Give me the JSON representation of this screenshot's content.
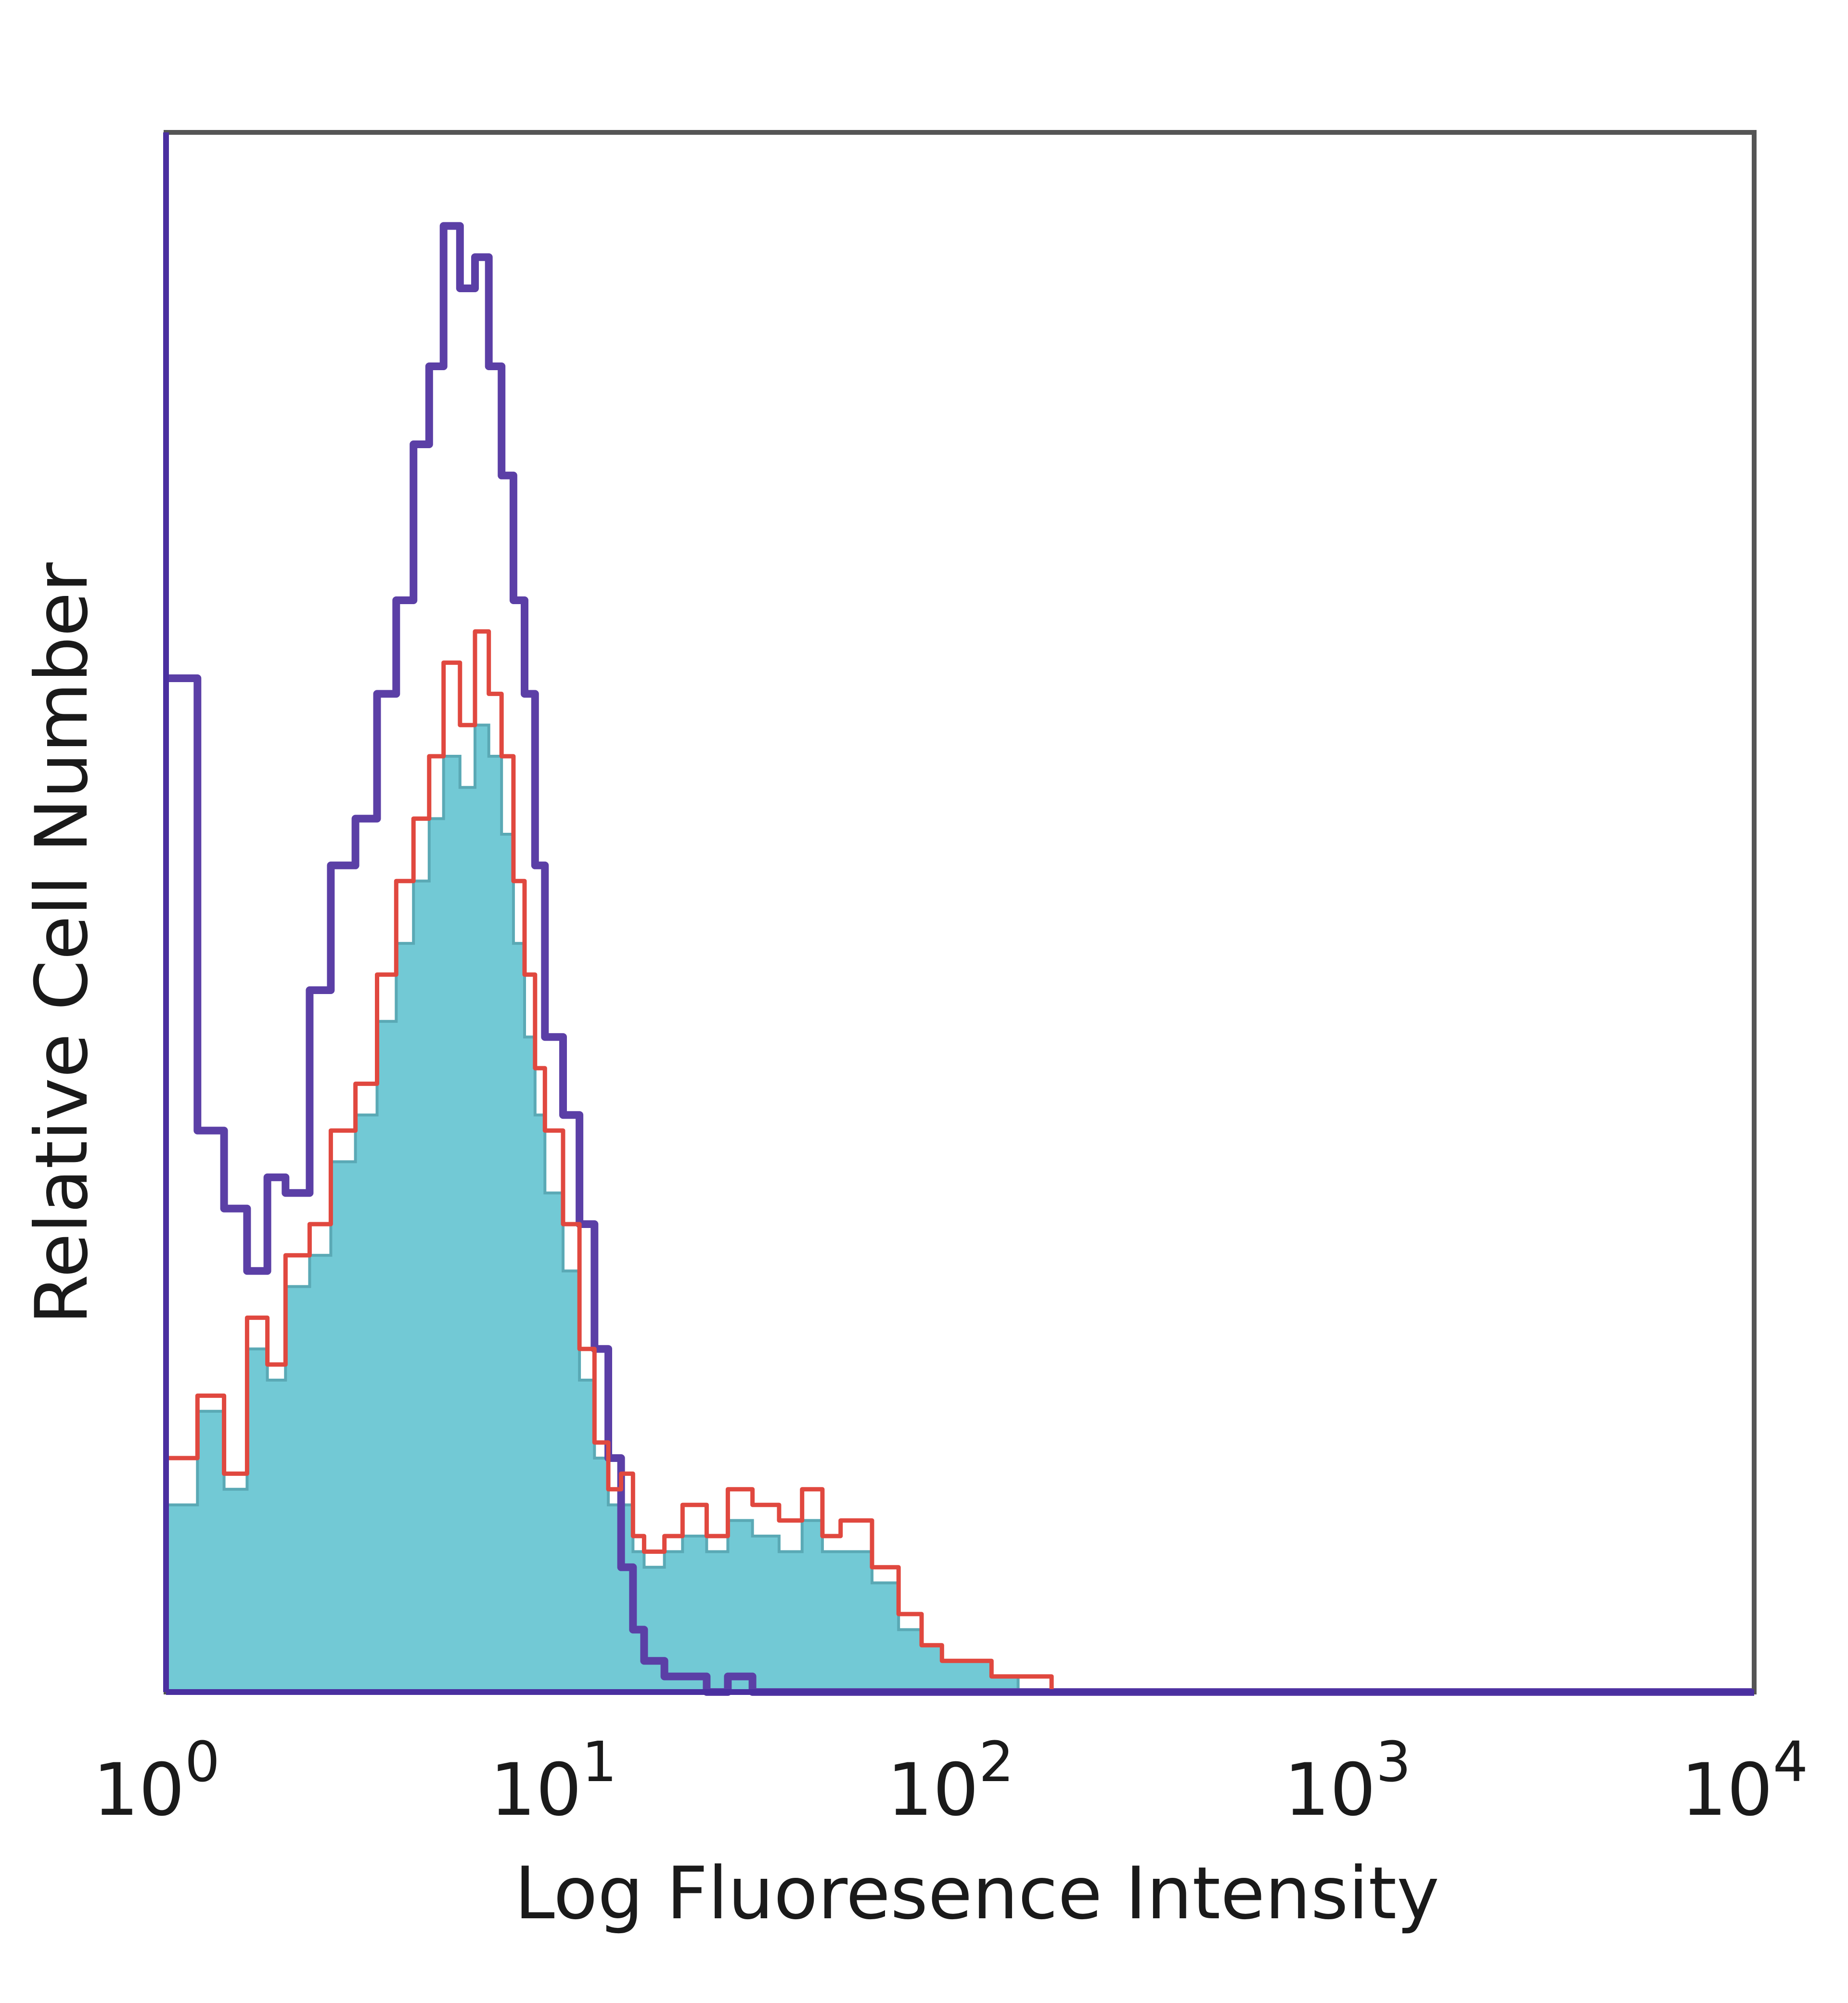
{
  "chart_data": {
    "type": "area",
    "title": "",
    "xlabel": "Log Fluoresence Intensity",
    "ylabel": "Relative Cell Number",
    "xscale": "log",
    "xlim": [
      1,
      10000
    ],
    "ylim": [
      0,
      100
    ],
    "grid": false,
    "legend": "none",
    "x_ticks": [
      {
        "base": "10",
        "exp": "0",
        "value": 1
      },
      {
        "base": "10",
        "exp": "1",
        "value": 10
      },
      {
        "base": "10",
        "exp": "2",
        "value": 100
      },
      {
        "base": "10",
        "exp": "3",
        "value": 1000
      },
      {
        "base": "10",
        "exp": "4",
        "value": 10000
      }
    ],
    "x": [
      1.0,
      1.2,
      1.4,
      1.6,
      1.8,
      2.0,
      2.3,
      2.6,
      3.0,
      3.4,
      3.8,
      4.2,
      4.6,
      5.0,
      5.5,
      6.0,
      6.5,
      7.0,
      7.5,
      8.0,
      8.5,
      9.0,
      10,
      11,
      12,
      13,
      14,
      15,
      16,
      18,
      20,
      23,
      26,
      30,
      35,
      40,
      45,
      50,
      60,
      70,
      80,
      90,
      100,
      120,
      140,
      170,
      200,
      250,
      300,
      400,
      10000
    ],
    "series": [
      {
        "color": "#5b3fa6",
        "style": "outline",
        "values": [
          65,
          36,
          31,
          27,
          33,
          32,
          45,
          53,
          56,
          64,
          70,
          80,
          85,
          94,
          90,
          92,
          85,
          78,
          70,
          64,
          53,
          42,
          37,
          30,
          22,
          15,
          8,
          4,
          2,
          1,
          1,
          0,
          1,
          0,
          0,
          0,
          0,
          0,
          0,
          0,
          0,
          0,
          0,
          0,
          0,
          0,
          0,
          0,
          0,
          0,
          0
        ]
      },
      {
        "color": "#e0483f",
        "style": "outline",
        "values": [
          15,
          19,
          14,
          24,
          21,
          28,
          30,
          36,
          39,
          46,
          52,
          56,
          60,
          66,
          62,
          68,
          64,
          60,
          52,
          46,
          40,
          36,
          30,
          22,
          16,
          13,
          14,
          10,
          9,
          10,
          12,
          10,
          13,
          12,
          11,
          13,
          10,
          11,
          8,
          5,
          3,
          2,
          2,
          1,
          1,
          0,
          0,
          0,
          0,
          0,
          0
        ]
      },
      {
        "color": "#72c9d5",
        "style": "filled",
        "values": [
          12,
          18,
          13,
          22,
          20,
          26,
          28,
          34,
          37,
          43,
          48,
          52,
          56,
          60,
          58,
          62,
          60,
          55,
          48,
          42,
          37,
          32,
          27,
          20,
          15,
          12,
          12,
          9,
          8,
          9,
          10,
          9,
          11,
          10,
          9,
          11,
          9,
          9,
          7,
          4,
          3,
          2,
          2,
          1,
          0,
          0,
          0,
          0,
          0,
          0,
          0
        ]
      }
    ]
  }
}
